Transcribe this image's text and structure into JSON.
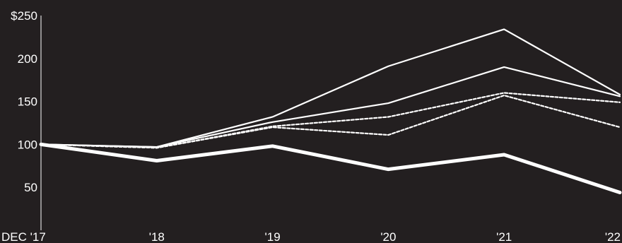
{
  "colors": {
    "background": "#231f20",
    "foreground": "#ffffff"
  },
  "chart_data": {
    "type": "line",
    "title": "",
    "xlabel": "",
    "ylabel": "",
    "categories": [
      "DEC '17",
      "'18",
      "'19",
      "'20",
      "'21",
      "'22"
    ],
    "ylim": [
      0,
      250
    ],
    "y_ticks": [
      {
        "value": 250,
        "label": "$250"
      },
      {
        "value": 200,
        "label": "200"
      },
      {
        "value": 150,
        "label": "150"
      },
      {
        "value": 100,
        "label": "100"
      },
      {
        "value": 50,
        "label": "50"
      }
    ],
    "grid": false,
    "legend": "none",
    "series": [
      {
        "style": "solid-thin",
        "values": [
          100,
          97,
          132,
          191,
          234,
          158
        ]
      },
      {
        "style": "solid-thin",
        "values": [
          100,
          97,
          126,
          148,
          190,
          156
        ]
      },
      {
        "style": "dashed",
        "values": [
          100,
          96,
          121,
          132,
          160,
          149
        ]
      },
      {
        "style": "dashed",
        "values": [
          100,
          96,
          120,
          111,
          157,
          120
        ]
      },
      {
        "style": "solid-thick",
        "values": [
          100,
          81,
          98,
          71,
          88,
          44
        ]
      }
    ]
  }
}
